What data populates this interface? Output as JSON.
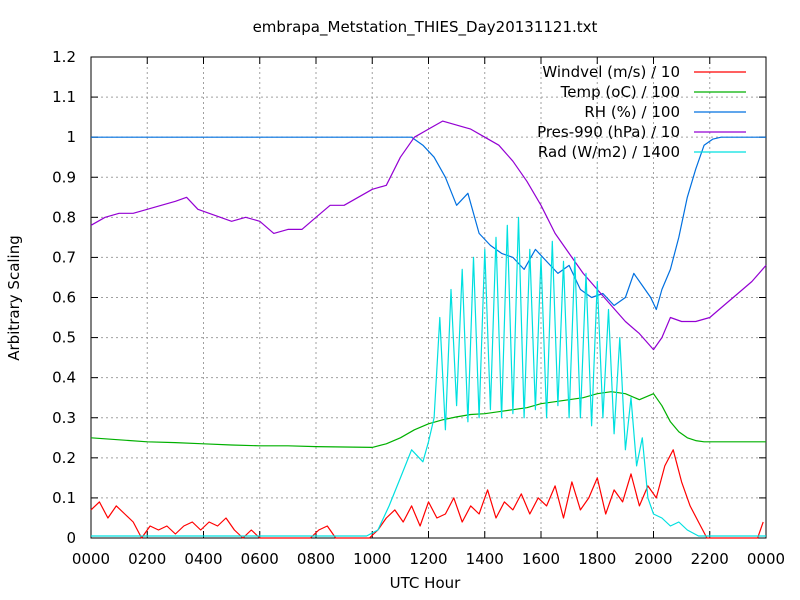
{
  "chart_data": {
    "type": "line",
    "title": "embrapa_Metstation_THIES_Day20131121.txt",
    "xlabel": "UTC Hour",
    "ylabel": "Arbitrary Scaling",
    "xlim": [
      0,
      24
    ],
    "ylim": [
      0,
      1.2
    ],
    "x_ticks": [
      0,
      2,
      4,
      6,
      8,
      10,
      12,
      14,
      16,
      18,
      20,
      22,
      24
    ],
    "x_tick_labels": [
      "0000",
      "0200",
      "0400",
      "0600",
      "0800",
      "1000",
      "1200",
      "1400",
      "1600",
      "1800",
      "2000",
      "2200",
      "0000"
    ],
    "y_ticks": [
      0,
      0.1,
      0.2,
      0.3,
      0.4,
      0.5,
      0.6,
      0.7,
      0.8,
      0.9,
      1,
      1.1,
      1.2
    ],
    "y_tick_labels": [
      "0",
      "0.1",
      "0.2",
      "0.3",
      "0.4",
      "0.5",
      "0.6",
      "0.7",
      "0.8",
      "0.9",
      "1",
      "1.1",
      "1.2"
    ],
    "grid": true,
    "legend_position": "top-right",
    "series": [
      {
        "name": "Windvel (m/s) / 10",
        "color": "#ff0000",
        "x": [
          0,
          0.3,
          0.6,
          0.9,
          1.2,
          1.5,
          1.8,
          2.1,
          2.4,
          2.7,
          3.0,
          3.3,
          3.6,
          3.9,
          4.2,
          4.5,
          4.8,
          5.1,
          5.4,
          5.7,
          6.0,
          6.3,
          6.6,
          6.9,
          7.2,
          7.5,
          7.8,
          8.1,
          8.4,
          8.7,
          9.0,
          9.3,
          9.6,
          9.9,
          10.2,
          10.5,
          10.8,
          11.1,
          11.4,
          11.7,
          12.0,
          12.3,
          12.6,
          12.9,
          13.2,
          13.5,
          13.8,
          14.1,
          14.4,
          14.7,
          15.0,
          15.3,
          15.6,
          15.9,
          16.2,
          16.5,
          16.8,
          17.1,
          17.4,
          17.7,
          18.0,
          18.3,
          18.6,
          18.9,
          19.2,
          19.5,
          19.8,
          20.1,
          20.4,
          20.7,
          21.0,
          21.3,
          21.6,
          21.9,
          22.2,
          22.5,
          22.8,
          23.1,
          23.4,
          23.7,
          23.9
        ],
        "values": [
          0.07,
          0.09,
          0.05,
          0.08,
          0.06,
          0.04,
          0.0,
          0.03,
          0.02,
          0.03,
          0.01,
          0.03,
          0.04,
          0.02,
          0.04,
          0.03,
          0.05,
          0.02,
          0.0,
          0.02,
          0.0,
          0.0,
          0.0,
          0.0,
          0.0,
          0.0,
          0.0,
          0.02,
          0.03,
          0.0,
          0.0,
          0.0,
          0.0,
          0.0,
          0.02,
          0.05,
          0.07,
          0.04,
          0.08,
          0.03,
          0.09,
          0.05,
          0.06,
          0.1,
          0.04,
          0.08,
          0.06,
          0.12,
          0.05,
          0.09,
          0.07,
          0.11,
          0.06,
          0.1,
          0.08,
          0.13,
          0.05,
          0.14,
          0.07,
          0.1,
          0.15,
          0.06,
          0.12,
          0.09,
          0.16,
          0.08,
          0.13,
          0.1,
          0.18,
          0.22,
          0.14,
          0.08,
          0.04,
          0.0,
          0.0,
          0.0,
          0.0,
          0.0,
          0.0,
          0.0,
          0.04
        ]
      },
      {
        "name": "Temp (oC) / 100",
        "color": "#00b000",
        "x": [
          0,
          1,
          2,
          3,
          4,
          5,
          6,
          7,
          8,
          9,
          10,
          10.5,
          11,
          11.5,
          12,
          12.5,
          13,
          13.5,
          14,
          14.5,
          15,
          15.5,
          16,
          16.5,
          17,
          17.5,
          18,
          18.5,
          19,
          19.5,
          20,
          20.3,
          20.6,
          20.9,
          21.2,
          21.5,
          21.8,
          22,
          23,
          24
        ],
        "values": [
          0.25,
          0.245,
          0.24,
          0.238,
          0.235,
          0.232,
          0.23,
          0.23,
          0.228,
          0.227,
          0.226,
          0.235,
          0.25,
          0.27,
          0.285,
          0.295,
          0.302,
          0.308,
          0.31,
          0.315,
          0.32,
          0.325,
          0.335,
          0.34,
          0.345,
          0.35,
          0.36,
          0.365,
          0.36,
          0.345,
          0.36,
          0.33,
          0.29,
          0.265,
          0.25,
          0.243,
          0.24,
          0.24,
          0.24,
          0.24
        ]
      },
      {
        "name": "RH (%) / 100",
        "color": "#0070e0",
        "x": [
          0,
          10.0,
          11.0,
          11.4,
          11.8,
          12.2,
          12.6,
          13.0,
          13.4,
          13.8,
          14.2,
          14.6,
          15.0,
          15.4,
          15.8,
          16.2,
          16.6,
          17.0,
          17.4,
          17.8,
          18.2,
          18.6,
          19.0,
          19.3,
          19.6,
          19.9,
          20.1,
          20.3,
          20.6,
          20.9,
          21.2,
          21.5,
          21.8,
          22.1,
          22.4,
          22.8,
          23.2,
          23.6,
          24
        ],
        "values": [
          1.0,
          1.0,
          1.0,
          1.0,
          0.98,
          0.95,
          0.9,
          0.83,
          0.86,
          0.76,
          0.73,
          0.71,
          0.7,
          0.67,
          0.72,
          0.69,
          0.66,
          0.68,
          0.62,
          0.6,
          0.61,
          0.58,
          0.6,
          0.66,
          0.63,
          0.6,
          0.57,
          0.62,
          0.67,
          0.75,
          0.85,
          0.92,
          0.98,
          0.995,
          1.0,
          1.0,
          1.0,
          1.0,
          1.0
        ]
      },
      {
        "name": "Pres-990 (hPa) / 10",
        "color": "#9400d3",
        "x": [
          0,
          0.5,
          1.0,
          1.5,
          2.0,
          2.5,
          3.0,
          3.4,
          3.8,
          4.2,
          4.6,
          5.0,
          5.5,
          6.0,
          6.5,
          7.0,
          7.5,
          8.0,
          8.5,
          9.0,
          9.5,
          10.0,
          10.5,
          11.0,
          11.5,
          12.0,
          12.5,
          13.0,
          13.5,
          14.0,
          14.5,
          15.0,
          15.5,
          16.0,
          16.5,
          17.0,
          17.5,
          18.0,
          18.5,
          19.0,
          19.5,
          20.0,
          20.3,
          20.6,
          21.0,
          21.5,
          22.0,
          22.5,
          23.0,
          23.5,
          24
        ],
        "values": [
          0.78,
          0.8,
          0.81,
          0.81,
          0.82,
          0.83,
          0.84,
          0.85,
          0.82,
          0.81,
          0.8,
          0.79,
          0.8,
          0.79,
          0.76,
          0.77,
          0.77,
          0.8,
          0.83,
          0.83,
          0.85,
          0.87,
          0.88,
          0.95,
          1.0,
          1.02,
          1.04,
          1.03,
          1.02,
          1.0,
          0.98,
          0.94,
          0.89,
          0.83,
          0.76,
          0.71,
          0.66,
          0.62,
          0.58,
          0.54,
          0.51,
          0.47,
          0.5,
          0.55,
          0.54,
          0.54,
          0.55,
          0.58,
          0.61,
          0.64,
          0.68
        ]
      },
      {
        "name": "Rad (W/m2) / 1400",
        "color": "#00e0e0",
        "x": [
          0,
          9.8,
          10.2,
          10.6,
          11.0,
          11.4,
          11.8,
          12.0,
          12.2,
          12.4,
          12.6,
          12.8,
          13.0,
          13.2,
          13.4,
          13.6,
          13.8,
          14.0,
          14.2,
          14.4,
          14.6,
          14.8,
          15.0,
          15.2,
          15.4,
          15.6,
          15.8,
          16.0,
          16.2,
          16.4,
          16.6,
          16.8,
          17.0,
          17.2,
          17.4,
          17.6,
          17.8,
          18.0,
          18.2,
          18.4,
          18.6,
          18.8,
          19.0,
          19.2,
          19.4,
          19.6,
          19.8,
          20.0,
          20.3,
          20.6,
          20.9,
          21.2,
          21.6,
          22.0,
          24
        ],
        "values": [
          0.005,
          0.005,
          0.02,
          0.08,
          0.15,
          0.22,
          0.19,
          0.24,
          0.3,
          0.55,
          0.27,
          0.62,
          0.33,
          0.67,
          0.29,
          0.7,
          0.3,
          0.72,
          0.32,
          0.75,
          0.3,
          0.78,
          0.31,
          0.8,
          0.3,
          0.72,
          0.32,
          0.7,
          0.3,
          0.74,
          0.33,
          0.69,
          0.3,
          0.7,
          0.3,
          0.66,
          0.28,
          0.64,
          0.3,
          0.57,
          0.26,
          0.5,
          0.22,
          0.35,
          0.18,
          0.25,
          0.1,
          0.06,
          0.05,
          0.03,
          0.04,
          0.02,
          0.005,
          0.005,
          0.005
        ]
      }
    ]
  }
}
